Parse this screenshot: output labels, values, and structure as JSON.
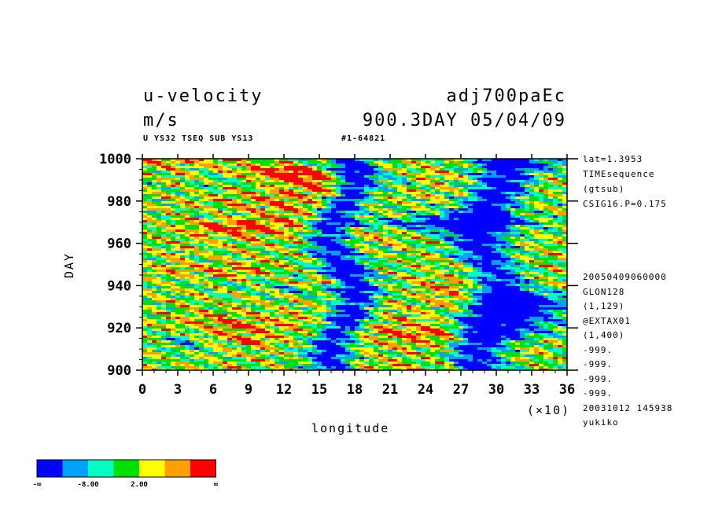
{
  "header": {
    "variable": "u-velocity",
    "units": "m/s",
    "experiment": "adj700paEc",
    "time_info": "900.3DAY 05/04/09",
    "subtitle_left": "U YS32 TSEQ SUB YS13",
    "subtitle_right": "#1-64821"
  },
  "side_info": {
    "top": [
      "lat=1.3953",
      "TIMEsequence",
      "(gtsub)",
      "CSIG16.P=0.175"
    ],
    "bottom": [
      "20050409060000",
      "GLON128",
      "(1,129)",
      "@EXTAX01",
      "(1,400)",
      "-999.",
      "-999.",
      "-999.",
      "-999.",
      "20031012 145938",
      "yukiko"
    ]
  },
  "chart_data": {
    "type": "heatmap",
    "title": "u-velocity",
    "xlabel": "longitude",
    "x_multiplier_label": "(×10)",
    "ylabel": "DAY",
    "xlim": [
      0,
      36
    ],
    "ylim": [
      900,
      1000
    ],
    "x_ticks": [
      "0",
      "3",
      "6",
      "9",
      "12",
      "15",
      "18",
      "21",
      "24",
      "27",
      "30",
      "33",
      "36"
    ],
    "y_ticks": [
      "900",
      "920",
      "940",
      "960",
      "980",
      "1000"
    ],
    "x_ticks_values": [
      0,
      3,
      6,
      9,
      12,
      15,
      18,
      21,
      24,
      27,
      30,
      33,
      36
    ],
    "y_ticks_values": [
      900,
      920,
      940,
      960,
      980,
      1000
    ],
    "colorbar": {
      "colors": [
        "#0000ff",
        "#00a0ff",
        "#00ffc0",
        "#00e000",
        "#ffff00",
        "#ffa000",
        "#ff0000"
      ],
      "labels": [
        "-∞",
        "-8.00",
        "2.00",
        "∞"
      ]
    },
    "regions": [
      {
        "description": "negative band",
        "x_range": [
          15,
          19
        ],
        "color_index": 0
      },
      {
        "description": "negative band",
        "x_range": [
          27,
          32
        ],
        "color_index": 0
      }
    ]
  }
}
